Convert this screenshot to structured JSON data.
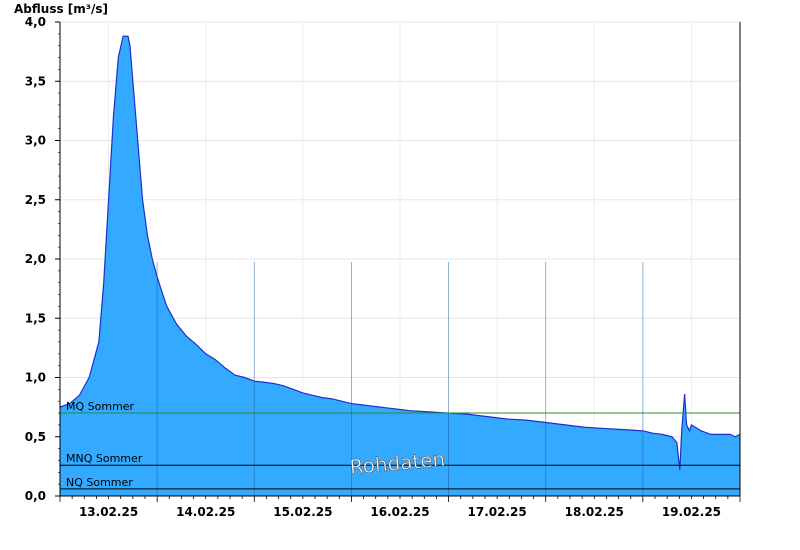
{
  "chart_data": {
    "type": "area",
    "title": "",
    "ylabel": "Abfluss [m³/s]",
    "xlabel": "",
    "ylim": [
      0,
      4.0
    ],
    "xlim": [
      0,
      7.0
    ],
    "yticks": [
      {
        "value": 0.0,
        "label": "0,0"
      },
      {
        "value": 0.5,
        "label": "0,5"
      },
      {
        "value": 1.0,
        "label": "1,0"
      },
      {
        "value": 1.5,
        "label": "1,5"
      },
      {
        "value": 2.0,
        "label": "2,0"
      },
      {
        "value": 2.5,
        "label": "2,5"
      },
      {
        "value": 3.0,
        "label": "3,0"
      },
      {
        "value": 3.5,
        "label": "3,5"
      },
      {
        "value": 4.0,
        "label": "4,0"
      }
    ],
    "xticks": [
      {
        "value": 0.5,
        "label": "13.02.25"
      },
      {
        "value": 1.5,
        "label": "14.02.25"
      },
      {
        "value": 2.5,
        "label": "15.02.25"
      },
      {
        "value": 3.5,
        "label": "16.02.25"
      },
      {
        "value": 4.5,
        "label": "17.02.25"
      },
      {
        "value": 5.5,
        "label": "18.02.25"
      },
      {
        "value": 6.5,
        "label": "19.02.25"
      }
    ],
    "grid": true,
    "series": [
      {
        "x": [
          0,
          0.1,
          0.2,
          0.3,
          0.4,
          0.45,
          0.5,
          0.55,
          0.6,
          0.65,
          0.7,
          0.72,
          0.75,
          0.8,
          0.85,
          0.9,
          0.95,
          1.0,
          1.05,
          1.1,
          1.2,
          1.3,
          1.4,
          1.5,
          1.6,
          1.7,
          1.8,
          1.9,
          2.0,
          2.1,
          2.2,
          2.3,
          2.4,
          2.5,
          2.6,
          2.7,
          2.8,
          2.9,
          3.0,
          3.1,
          3.2,
          3.3,
          3.4,
          3.5,
          3.6,
          3.8,
          4.0,
          4.2,
          4.4,
          4.6,
          4.8,
          5.0,
          5.2,
          5.4,
          5.6,
          5.8,
          6.0,
          6.1,
          6.2,
          6.3,
          6.35,
          6.38,
          6.4,
          6.43,
          6.45,
          6.48,
          6.5,
          6.6,
          6.7,
          6.8,
          6.9,
          6.95,
          7.0
        ],
        "y": [
          0.75,
          0.78,
          0.85,
          1.0,
          1.3,
          1.8,
          2.5,
          3.2,
          3.7,
          3.88,
          3.88,
          3.8,
          3.5,
          3.0,
          2.5,
          2.2,
          2.0,
          1.85,
          1.72,
          1.6,
          1.45,
          1.35,
          1.28,
          1.2,
          1.15,
          1.08,
          1.02,
          1.0,
          0.97,
          0.96,
          0.95,
          0.93,
          0.9,
          0.87,
          0.85,
          0.83,
          0.82,
          0.8,
          0.78,
          0.77,
          0.76,
          0.75,
          0.74,
          0.73,
          0.72,
          0.71,
          0.7,
          0.69,
          0.67,
          0.65,
          0.64,
          0.62,
          0.6,
          0.58,
          0.57,
          0.56,
          0.55,
          0.53,
          0.52,
          0.5,
          0.45,
          0.22,
          0.55,
          0.86,
          0.6,
          0.55,
          0.6,
          0.55,
          0.52,
          0.52,
          0.52,
          0.5,
          0.52
        ]
      }
    ],
    "reference_lines": [
      {
        "label": "MQ Sommer",
        "value": 0.7,
        "color": "#2e8b2e"
      },
      {
        "label": "MNQ Sommer",
        "value": 0.26,
        "color": "#000000"
      },
      {
        "label": "NQ Sommer",
        "value": 0.06,
        "color": "#000000"
      }
    ],
    "annotations": [
      "Rohdaten"
    ],
    "fill_color": "#33aaff",
    "line_color": "#1c2fc9"
  }
}
